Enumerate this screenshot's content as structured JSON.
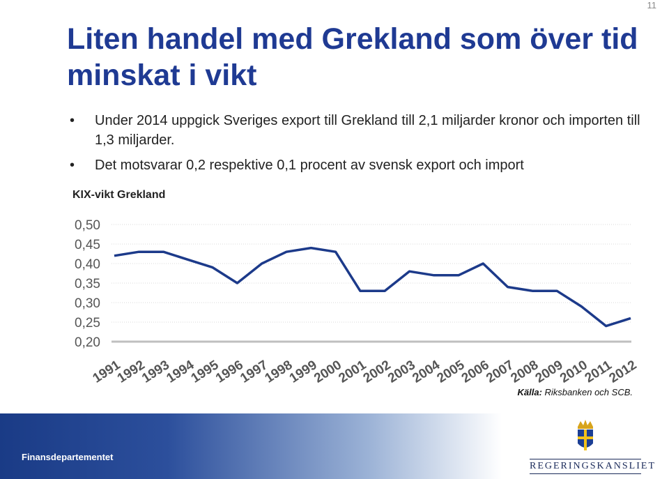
{
  "page": {
    "number": "11"
  },
  "slide": {
    "title": "Liten handel med Grekland som över tid minskat i vikt",
    "bullets": [
      "Under 2014 uppgick Sveriges export till Grekland till 2,1 miljarder kronor och importen till 1,3 miljarder.",
      "Det motsvarar 0,2 respektive 0,1 procent av svensk export och import"
    ],
    "bullet_icon": "bullet-dot"
  },
  "chart_label": "KIX-vikt Grekland",
  "source": {
    "label": "Källa:",
    "text": " Riksbanken och SCB."
  },
  "footer": {
    "text": "Finansdepartementet",
    "logo_text": "REGERINGSKANSLIET",
    "logo_icon": "crown-shield-icon"
  },
  "colors": {
    "title": "#1f3a93",
    "line": "#1c3a8a",
    "grid": "#d9d9d9",
    "axis": "#bfbfbf",
    "tick": "#555555"
  },
  "chart_data": {
    "type": "line",
    "title": "KIX-vikt Grekland",
    "xlabel": "",
    "ylabel": "",
    "x": [
      "1991",
      "1992",
      "1993",
      "1994",
      "1995",
      "1996",
      "1997",
      "1998",
      "1999",
      "2000",
      "2001",
      "2002",
      "2003",
      "2004",
      "2005",
      "2006",
      "2007",
      "2008",
      "2009",
      "2010",
      "2011",
      "2012"
    ],
    "series": [
      {
        "values": [
          0.42,
          0.43,
          0.43,
          0.41,
          0.39,
          0.35,
          0.4,
          0.43,
          0.44,
          0.43,
          0.33,
          0.33,
          0.38,
          0.37,
          0.37,
          0.4,
          0.34,
          0.33,
          0.33,
          0.29,
          0.24,
          0.26
        ]
      }
    ],
    "ylim": [
      0.2,
      0.5
    ],
    "yticks": [
      "0,50",
      "0,45",
      "0,40",
      "0,35",
      "0,30",
      "0,25",
      "0,20"
    ],
    "ytick_values": [
      0.5,
      0.45,
      0.4,
      0.35,
      0.3,
      0.25,
      0.2
    ],
    "grid": true,
    "legend": "none"
  }
}
